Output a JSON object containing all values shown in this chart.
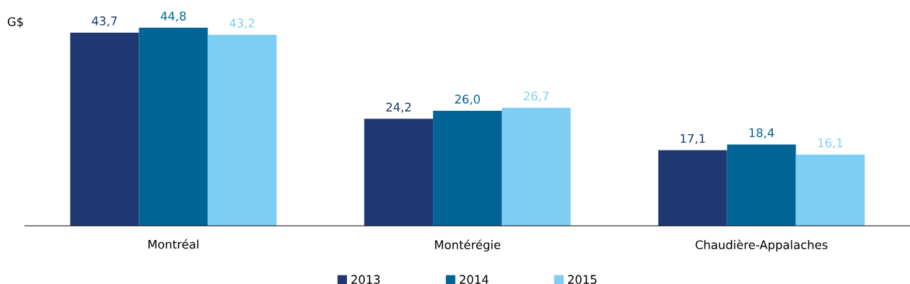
{
  "chart_data": {
    "type": "bar",
    "ylabel": "G$",
    "categories": [
      "Montréal",
      "Montérégie",
      "Chaudière-Appalaches"
    ],
    "series": [
      {
        "name": "2013",
        "color": "#1f3872",
        "values": [
          43.7,
          24.2,
          17.1
        ],
        "value_labels": [
          "43,7",
          "24,2",
          "17,1"
        ]
      },
      {
        "name": "2014",
        "color": "#006595",
        "values": [
          44.8,
          26.0,
          18.4
        ],
        "value_labels": [
          "44,8",
          "26,0",
          "18,4"
        ]
      },
      {
        "name": "2015",
        "color": "#7ecef4",
        "values": [
          43.2,
          26.7,
          16.1
        ],
        "value_labels": [
          "43,2",
          "26,7",
          "16,1"
        ]
      }
    ],
    "grid": false,
    "legend": "bottom",
    "tick_labels": "x"
  }
}
